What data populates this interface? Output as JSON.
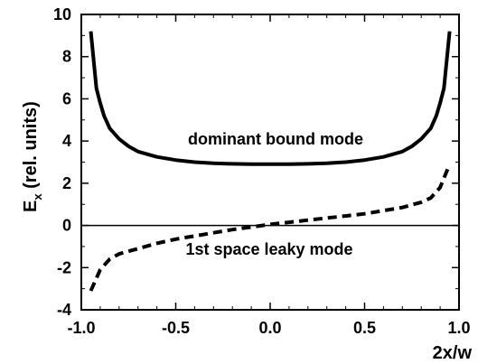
{
  "chart_data": {
    "type": "line",
    "ylabel_main": "E",
    "ylabel_sub": "x",
    "ylabel_rest": " (rel. units)",
    "xlabel": "2x/w",
    "xlim": [
      -1.0,
      1.0
    ],
    "ylim": [
      -4,
      10
    ],
    "x_ticks": [
      -1.0,
      -0.5,
      0.0,
      0.5,
      1.0
    ],
    "x_tick_labels": [
      "-1.0",
      "-0.5",
      "0.0",
      "0.5",
      "1.0"
    ],
    "y_ticks": [
      -4,
      -2,
      0,
      2,
      4,
      6,
      8,
      10
    ],
    "y_tick_labels": [
      "-4",
      "-2",
      "0",
      "2",
      "4",
      "6",
      "8",
      "10"
    ],
    "grid": false,
    "zero_line": true,
    "series": [
      {
        "name": "dominant bound mode",
        "style": "solid",
        "color": "#000000",
        "x": [
          -0.95,
          -0.92,
          -0.9,
          -0.88,
          -0.85,
          -0.8,
          -0.75,
          -0.7,
          -0.6,
          -0.5,
          -0.4,
          -0.3,
          -0.2,
          -0.1,
          0.0,
          0.1,
          0.2,
          0.3,
          0.4,
          0.5,
          0.6,
          0.7,
          0.75,
          0.8,
          0.85,
          0.88,
          0.9,
          0.92,
          0.95
        ],
        "y": [
          9.2,
          6.5,
          5.8,
          5.2,
          4.6,
          4.1,
          3.75,
          3.5,
          3.25,
          3.1,
          3.0,
          2.95,
          2.92,
          2.9,
          2.9,
          2.9,
          2.92,
          2.95,
          3.0,
          3.1,
          3.25,
          3.5,
          3.75,
          4.1,
          4.6,
          5.2,
          5.8,
          6.5,
          9.2
        ]
      },
      {
        "name": "1st space leaky mode",
        "style": "dashed",
        "color": "#000000",
        "x": [
          -0.95,
          -0.9,
          -0.85,
          -0.8,
          -0.7,
          -0.6,
          -0.5,
          -0.4,
          -0.3,
          -0.2,
          -0.1,
          0.0,
          0.1,
          0.2,
          0.3,
          0.4,
          0.5,
          0.6,
          0.7,
          0.8,
          0.85,
          0.9,
          0.95
        ],
        "y": [
          -3.1,
          -2.1,
          -1.6,
          -1.35,
          -1.1,
          -0.85,
          -0.65,
          -0.5,
          -0.35,
          -0.2,
          -0.08,
          0.05,
          0.15,
          0.25,
          0.35,
          0.45,
          0.55,
          0.7,
          0.85,
          1.1,
          1.3,
          1.8,
          2.9
        ]
      }
    ]
  }
}
